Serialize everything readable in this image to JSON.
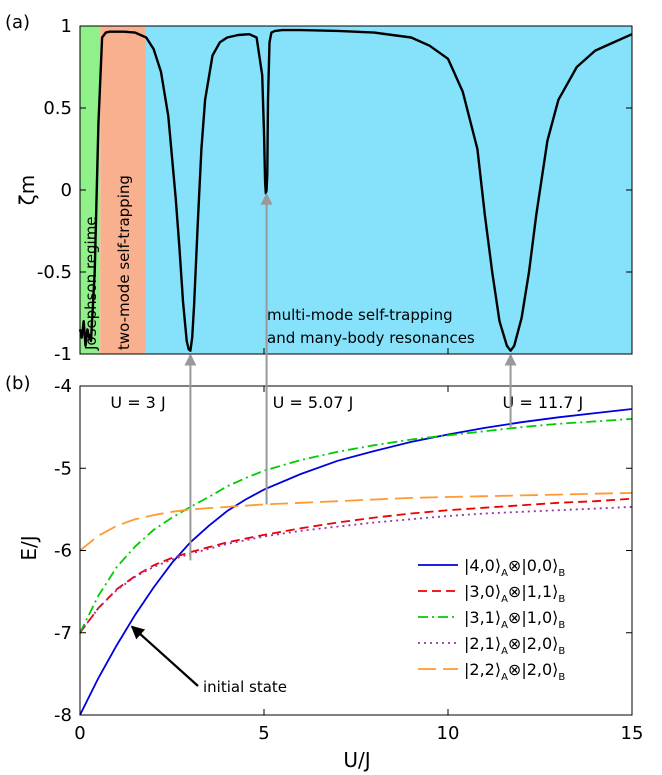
{
  "chart_data": [
    {
      "panel_label": "(a)",
      "type": "line",
      "xlim": [
        0,
        15
      ],
      "ylim": [
        -1,
        1
      ],
      "ylabel": "ζm",
      "yticks": [
        "-1",
        "-0.5",
        "0",
        "0.5",
        "1"
      ],
      "regions": [
        {
          "label": "Josephson regime",
          "x0": 0,
          "x1": 0.55,
          "color": "#90f08a"
        },
        {
          "label": "two-mode self-trapping",
          "x0": 0.55,
          "x1": 1.78,
          "color": "#f9b08e"
        },
        {
          "label": "multi-mode self-trapping",
          "label2": "and many-body resonances",
          "x0": 1.78,
          "x1": 15,
          "color": "#85e2fa"
        }
      ],
      "series": [
        {
          "color": "#000000",
          "x": [
            0,
            0.05,
            0.1,
            0.15,
            0.2,
            0.25,
            0.3,
            0.4,
            0.5,
            0.6,
            0.7,
            0.8,
            1.0,
            1.2,
            1.5,
            1.8,
            2.0,
            2.2,
            2.4,
            2.6,
            2.7,
            2.8,
            2.9,
            2.95,
            3.0,
            3.05,
            3.1,
            3.2,
            3.3,
            3.4,
            3.6,
            3.8,
            4.0,
            4.3,
            4.6,
            4.8,
            4.95,
            5.0,
            5.03,
            5.05,
            5.07,
            5.09,
            5.11,
            5.15,
            5.2,
            5.3,
            5.5,
            6.0,
            7.0,
            8.0,
            9.0,
            9.5,
            10.0,
            10.4,
            10.8,
            11.0,
            11.2,
            11.4,
            11.6,
            11.7,
            11.8,
            12.0,
            12.2,
            12.4,
            12.7,
            13.0,
            13.5,
            14.0,
            14.5,
            15.0
          ],
          "y": [
            -0.85,
            -0.9,
            -0.8,
            -0.95,
            -0.85,
            -0.9,
            -0.92,
            -0.5,
            0.4,
            0.93,
            0.96,
            0.965,
            0.965,
            0.965,
            0.96,
            0.93,
            0.86,
            0.72,
            0.45,
            -0.05,
            -0.35,
            -0.68,
            -0.92,
            -0.97,
            -0.98,
            -0.9,
            -0.7,
            -0.2,
            0.25,
            0.55,
            0.82,
            0.9,
            0.93,
            0.945,
            0.95,
            0.93,
            0.7,
            0.35,
            0.05,
            -0.02,
            0.0,
            0.1,
            0.55,
            0.9,
            0.96,
            0.97,
            0.975,
            0.975,
            0.97,
            0.96,
            0.93,
            0.88,
            0.8,
            0.6,
            0.25,
            -0.15,
            -0.5,
            -0.8,
            -0.95,
            -0.98,
            -0.95,
            -0.78,
            -0.5,
            -0.15,
            0.3,
            0.55,
            0.75,
            0.85,
            0.9,
            0.95
          ]
        }
      ]
    },
    {
      "panel_label": "(b)",
      "type": "line",
      "xlim": [
        0,
        15
      ],
      "ylim": [
        -8,
        -4
      ],
      "xlabel": "U/J",
      "ylabel": "E/J",
      "xticks": [
        "0",
        "5",
        "10",
        "15"
      ],
      "yticks": [
        "-8",
        "-7",
        "-6",
        "-5",
        "-4"
      ],
      "series": [
        {
          "label": "|4,0⟩",
          "sub1": "A",
          "mid": "⊗|0,0⟩",
          "sub2": "B",
          "color": "#0000dd",
          "dash": "",
          "x": [
            0,
            0.5,
            1,
            1.5,
            2,
            2.5,
            3,
            3.5,
            4,
            4.5,
            5,
            6,
            7,
            8,
            9,
            10,
            11,
            12,
            13,
            14,
            15
          ],
          "y": [
            -8.0,
            -7.55,
            -7.15,
            -6.78,
            -6.45,
            -6.15,
            -5.9,
            -5.7,
            -5.52,
            -5.38,
            -5.26,
            -5.07,
            -4.91,
            -4.79,
            -4.68,
            -4.59,
            -4.51,
            -4.44,
            -4.38,
            -4.33,
            -4.28
          ]
        },
        {
          "label": "|3,0⟩",
          "sub1": "A",
          "mid": "⊗|1,1⟩",
          "sub2": "B",
          "color": "#ee0000",
          "dash": "9,5",
          "x": [
            0,
            0.5,
            1,
            1.5,
            2,
            2.5,
            3,
            4,
            5,
            6,
            7,
            8,
            9,
            10,
            11,
            12,
            13,
            14,
            15
          ],
          "y": [
            -7.0,
            -6.7,
            -6.47,
            -6.31,
            -6.18,
            -6.09,
            -6.02,
            -5.9,
            -5.81,
            -5.73,
            -5.66,
            -5.6,
            -5.55,
            -5.51,
            -5.48,
            -5.45,
            -5.42,
            -5.4,
            -5.37
          ]
        },
        {
          "label": "|3,1⟩",
          "sub1": "A",
          "mid": "⊗|1,0⟩",
          "sub2": "B",
          "color": "#00cc00",
          "dash": "10,4,2,4",
          "x": [
            0,
            0.5,
            1,
            1.5,
            2,
            2.5,
            3,
            3.5,
            4,
            4.5,
            5,
            6,
            7,
            8,
            9,
            10,
            11,
            12,
            13,
            14,
            15
          ],
          "y": [
            -7.0,
            -6.55,
            -6.2,
            -5.95,
            -5.75,
            -5.6,
            -5.47,
            -5.35,
            -5.22,
            -5.12,
            -5.03,
            -4.9,
            -4.8,
            -4.72,
            -4.65,
            -4.6,
            -4.55,
            -4.5,
            -4.46,
            -4.43,
            -4.4
          ]
        },
        {
          "label": "|2,1⟩",
          "sub1": "A",
          "mid": "⊗|2,0⟩",
          "sub2": "B",
          "color": "#9933aa",
          "dash": "2,4",
          "x": [
            0,
            0.5,
            1,
            1.5,
            2,
            2.5,
            3,
            4,
            5,
            6,
            7,
            8,
            9,
            10,
            11,
            12,
            13,
            14,
            15
          ],
          "y": [
            -7.0,
            -6.7,
            -6.48,
            -6.32,
            -6.2,
            -6.11,
            -6.04,
            -5.92,
            -5.83,
            -5.76,
            -5.71,
            -5.66,
            -5.62,
            -5.58,
            -5.55,
            -5.53,
            -5.51,
            -5.49,
            -5.47
          ]
        },
        {
          "label": "|2,2⟩",
          "sub1": "A",
          "mid": "⊗|2,0⟩",
          "sub2": "B",
          "color": "#ff9933",
          "dash": "18,7",
          "x": [
            0,
            0.5,
            1,
            1.5,
            2,
            2.5,
            3,
            4,
            5,
            6,
            7,
            8,
            9,
            10,
            11,
            12,
            13,
            14,
            15
          ],
          "y": [
            -6.0,
            -5.82,
            -5.7,
            -5.62,
            -5.57,
            -5.53,
            -5.5,
            -5.47,
            -5.44,
            -5.42,
            -5.4,
            -5.38,
            -5.36,
            -5.35,
            -5.34,
            -5.33,
            -5.32,
            -5.31,
            -5.3
          ]
        }
      ],
      "annotations": {
        "initial_state": {
          "text": "initial state",
          "target_x": 1.3,
          "target_y": -6.9
        },
        "resonances": [
          {
            "text": "U = 3 J",
            "x": 3.0,
            "y_low": -6.12
          },
          {
            "text": "U = 5.07 J",
            "x": 5.07,
            "y_low": -5.44
          },
          {
            "text": "U = 11.7 J",
            "x": 11.7,
            "y_low": -4.5
          }
        ]
      }
    }
  ]
}
